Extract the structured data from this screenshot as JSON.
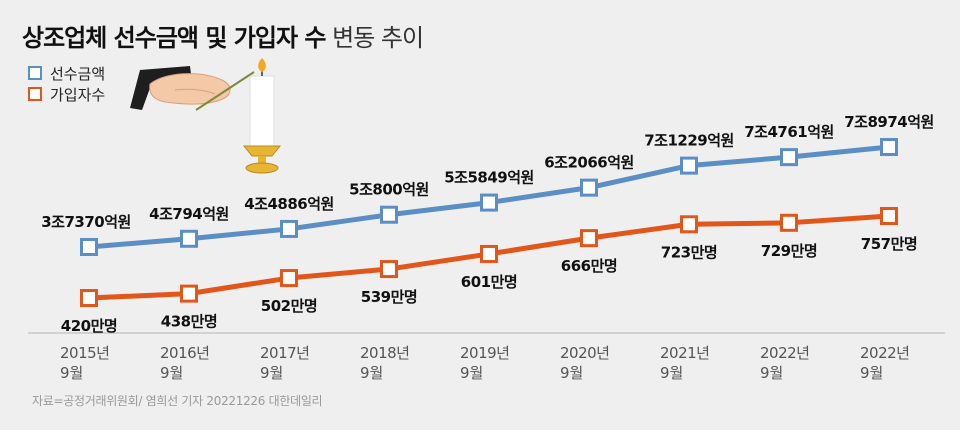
{
  "title": {
    "bold": "상조업체 선수금액 및 가입자 수",
    "light": "변동 추이"
  },
  "legend": [
    {
      "label": "선수금액",
      "color": "#5b8ec4"
    },
    {
      "label": "가입자수",
      "color": "#e2561a"
    }
  ],
  "illustration": {
    "name": "hands-lighting-candle"
  },
  "source": "자료=공정거래위원회/ 염희선 기자 20221226 대한데일리",
  "chart_data": {
    "type": "line",
    "categories": [
      {
        "year": "2015년",
        "month": "9월"
      },
      {
        "year": "2016년",
        "month": "9월"
      },
      {
        "year": "2017년",
        "month": "9월"
      },
      {
        "year": "2018년",
        "month": "9월"
      },
      {
        "year": "2019년",
        "month": "9월"
      },
      {
        "year": "2020년",
        "month": "9월"
      },
      {
        "year": "2021년",
        "month": "9월"
      },
      {
        "year": "2022년",
        "month": "9월"
      },
      {
        "year": "2022년",
        "month": "9월"
      }
    ],
    "series": [
      {
        "name": "선수금액",
        "unit": "억원",
        "color": "#5b8ec4",
        "values": [
          37370,
          40794,
          44886,
          50800,
          55849,
          62066,
          71229,
          74761,
          78974
        ],
        "labels": [
          "3조7370억원",
          "4조794억원",
          "4조4886억원",
          "5조800억원",
          "5조5849억원",
          "6조2066억원",
          "7조1229억원",
          "7조4761억원",
          "7조8974억원"
        ],
        "label_position": "above"
      },
      {
        "name": "가입자수",
        "unit": "만명",
        "color": "#e2561a",
        "values": [
          420,
          438,
          502,
          539,
          601,
          666,
          723,
          729,
          757
        ],
        "labels": [
          "420만명",
          "438만명",
          "502만명",
          "539만명",
          "601만명",
          "666만명",
          "723만명",
          "729만명",
          "757만명"
        ],
        "label_position": "below"
      }
    ]
  }
}
